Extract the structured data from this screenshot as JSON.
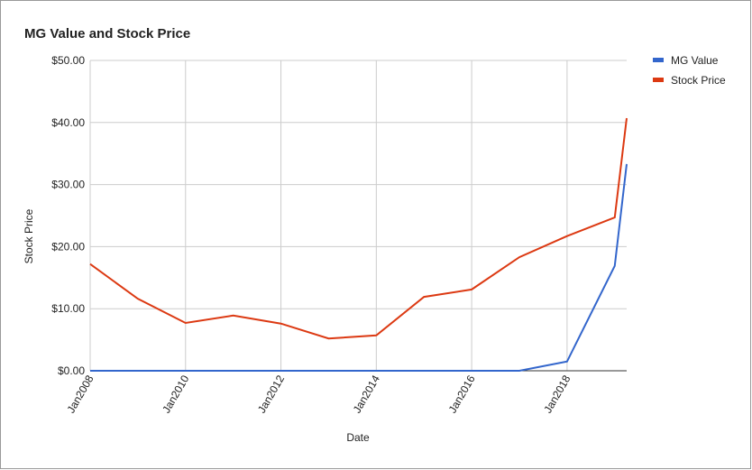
{
  "chart_data": {
    "type": "line",
    "title": "MG Value and Stock Price",
    "x_label": "Date",
    "y_label": "Stock Price",
    "x": [
      "2008-01",
      "2009-01",
      "2010-01",
      "2011-01",
      "2012-01",
      "2013-01",
      "2014-01",
      "2015-01",
      "2016-01",
      "2017-01",
      "2018-01",
      "2019-01",
      "2019-04"
    ],
    "series": [
      {
        "name": "MG Value",
        "color": "#3366cc",
        "values": [
          0,
          0,
          0,
          0,
          0,
          0,
          0,
          0,
          0,
          0,
          1.5,
          16.9,
          33.3
        ]
      },
      {
        "name": "Stock Price",
        "color": "#dc3912",
        "values": [
          17.2,
          11.6,
          7.7,
          8.9,
          7.6,
          5.2,
          5.7,
          11.9,
          13.1,
          18.3,
          21.7,
          24.7,
          40.7
        ]
      }
    ],
    "xlim": [
      "2008-01",
      "2019-04"
    ],
    "xticks": [
      {
        "value": "2008-01",
        "label": "Jan2008"
      },
      {
        "value": "2010-01",
        "label": "Jan2010"
      },
      {
        "value": "2012-01",
        "label": "Jan2012"
      },
      {
        "value": "2014-01",
        "label": "Jan2014"
      },
      {
        "value": "2016-01",
        "label": "Jan2016"
      },
      {
        "value": "2018-01",
        "label": "Jan2018"
      }
    ],
    "ylim": [
      0,
      50
    ],
    "yticks": [
      {
        "value": 0,
        "label": "$0.00"
      },
      {
        "value": 10,
        "label": "$10.00"
      },
      {
        "value": 20,
        "label": "$20.00"
      },
      {
        "value": 30,
        "label": "$30.00"
      },
      {
        "value": 40,
        "label": "$40.00"
      },
      {
        "value": 50,
        "label": "$50.00"
      }
    ],
    "grid": true,
    "legend": "right"
  }
}
